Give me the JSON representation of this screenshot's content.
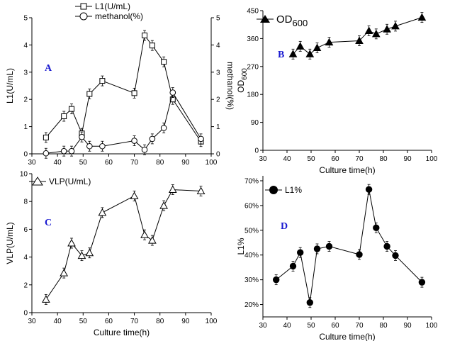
{
  "chart_data": [
    {
      "id": "A",
      "type": "line",
      "panel_label": "A",
      "xlabel": "",
      "ylabel": "L1(U/mL)",
      "y2label": "methanol(%)",
      "xlim": [
        30,
        100
      ],
      "ylim": [
        0,
        5
      ],
      "xticks": [
        30,
        40,
        50,
        60,
        70,
        80,
        90,
        100
      ],
      "yticks": [
        0,
        1,
        2,
        3,
        4,
        5
      ],
      "y2ticks": [
        0,
        1,
        2,
        3,
        4,
        5
      ],
      "legend_position": "top-left",
      "series": [
        {
          "name": "L1(U/mL)",
          "marker": "square",
          "x": [
            35.5,
            42.5,
            45.5,
            49.5,
            52.5,
            57.5,
            70,
            74,
            77,
            81.5,
            85,
            96
          ],
          "y": [
            0.6,
            1.38,
            1.65,
            0.75,
            2.2,
            2.68,
            2.23,
            4.35,
            3.98,
            3.38,
            2.0,
            0.45
          ]
        },
        {
          "name": "methanol(%)",
          "marker": "circle",
          "x": [
            35.5,
            42.5,
            45.5,
            49.5,
            52.5,
            57.5,
            70,
            74,
            77,
            81.5,
            85,
            96
          ],
          "y": [
            0.02,
            0.1,
            0.1,
            0.62,
            0.28,
            0.28,
            0.48,
            0.15,
            0.55,
            0.95,
            2.25,
            0.55
          ]
        }
      ]
    },
    {
      "id": "B",
      "type": "line",
      "panel_label": "B",
      "xlabel": "Culture time(h)",
      "ylabel": "OD600",
      "xlim": [
        30,
        100
      ],
      "ylim": [
        0,
        450
      ],
      "xticks": [
        30,
        40,
        50,
        60,
        70,
        80,
        90,
        100
      ],
      "yticks": [
        0,
        90,
        180,
        270,
        360,
        450
      ],
      "legend_position": "top-left",
      "series": [
        {
          "name": "OD600",
          "marker": "triangle-filled",
          "x": [
            42.5,
            45.5,
            49.5,
            52.5,
            57.5,
            70,
            74,
            77,
            81.5,
            85,
            96
          ],
          "y": [
            310,
            335,
            310,
            330,
            348,
            353,
            385,
            375,
            390,
            400,
            428
          ]
        }
      ]
    },
    {
      "id": "C",
      "type": "line",
      "panel_label": "C",
      "xlabel": "Culture time(h)",
      "ylabel": "VLP(U/mL)",
      "xlim": [
        30,
        100
      ],
      "ylim": [
        0,
        10
      ],
      "xticks": [
        30,
        40,
        50,
        60,
        70,
        80,
        90,
        100
      ],
      "yticks": [
        0,
        2,
        4,
        6,
        8,
        10
      ],
      "legend_position": "top-left",
      "series": [
        {
          "name": "VLP(U/mL)",
          "marker": "triangle-open",
          "x": [
            35.5,
            42.5,
            45.5,
            49.5,
            52.5,
            57.5,
            70,
            74,
            77,
            81.5,
            85,
            96
          ],
          "y": [
            0.95,
            2.85,
            5.0,
            4.1,
            4.3,
            7.2,
            8.4,
            5.6,
            5.2,
            7.7,
            8.85,
            8.75
          ]
        }
      ]
    },
    {
      "id": "D",
      "type": "line",
      "panel_label": "D",
      "xlabel": "Culture time(h)",
      "ylabel": "L1%",
      "xlim": [
        30,
        100
      ],
      "ylim": [
        15,
        72
      ],
      "xticks": [
        30,
        40,
        50,
        60,
        70,
        80,
        90,
        100
      ],
      "yticks": [
        20,
        30,
        40,
        50,
        60,
        70
      ],
      "ytick_suffix": "%",
      "legend_position": "top-left",
      "series": [
        {
          "name": "L1%",
          "marker": "circle-filled",
          "x": [
            35.5,
            42.5,
            45.5,
            49.5,
            52.5,
            57.5,
            70,
            74,
            77,
            81.5,
            85,
            96
          ],
          "y": [
            30,
            35.5,
            41,
            20.8,
            42.5,
            43.5,
            40.2,
            66.5,
            51,
            43.5,
            39.8,
            29
          ]
        }
      ]
    }
  ]
}
